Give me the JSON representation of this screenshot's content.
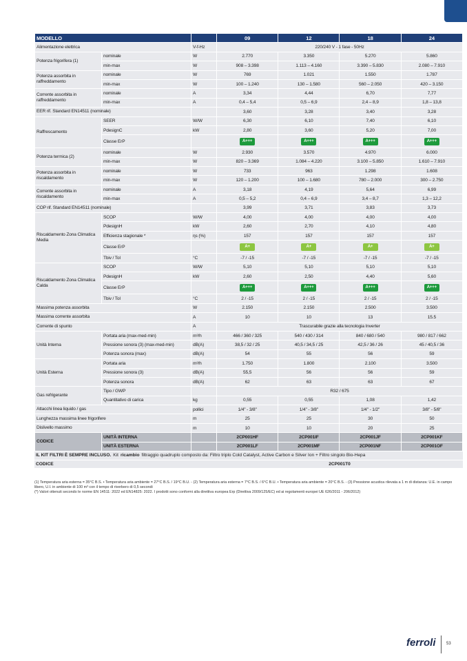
{
  "table": {
    "header": {
      "title": "MODELLO",
      "models": [
        "09",
        "12",
        "18",
        "24"
      ]
    },
    "sections": [
      {
        "label": "Alimentazione elettrica",
        "rows": [
          {
            "unit": "V-f-Hz",
            "cells": [
              "220/240 V - 1 fase - 50Hz"
            ]
          }
        ]
      },
      {
        "label": "Potenza frigorifera (1)",
        "rows": [
          {
            "sub": "nominale",
            "unit": "W",
            "cells": [
              "2.770",
              "3.350",
              "5.270",
              "5.860"
            ]
          },
          {
            "sub": "min-max",
            "unit": "W",
            "cells": [
              "908 – 3.398",
              "1.113 – 4.160",
              "3.390 – 5.830",
              "2.080 – 7.910"
            ]
          }
        ]
      },
      {
        "label": "Potenza assorbita in raffreddamento",
        "rows": [
          {
            "sub": "nominale",
            "unit": "W",
            "cells": [
              "769",
              "1.021",
              "1.550",
              "1.787"
            ]
          },
          {
            "sub": "min-max",
            "unit": "W",
            "cells": [
              "100 – 1.240",
              "130 – 1.580",
              "560 – 2.050",
              "420 – 3.150"
            ]
          }
        ]
      },
      {
        "label": "Corrente assorbita in raffreddamento",
        "rows": [
          {
            "sub": "nominale",
            "unit": "A",
            "cells": [
              "3,34",
              "4,44",
              "6,70",
              "7,77"
            ]
          },
          {
            "sub": "min-max",
            "unit": "A",
            "cells": [
              "0,4 – 5,4",
              "0,5 – 6,9",
              "2,4 – 8,9",
              "1,8 – 13,8"
            ]
          }
        ]
      },
      {
        "label": "EER rif. Standard EN14511 (nominale)",
        "rows": [
          {
            "cells": [
              "3,60",
              "3,28",
              "3,40",
              "3,28"
            ]
          }
        ]
      },
      {
        "label": "Raffrescamento",
        "rows": [
          {
            "sub": "SEER",
            "unit": "W/W",
            "cells": [
              "6,30",
              "6,10",
              "7,40",
              "6,10"
            ]
          },
          {
            "sub": "PdesignC",
            "unit": "kW",
            "cells": [
              "2,80",
              "3,60",
              "5,20",
              "7,00"
            ]
          },
          {
            "sub": "Classe ErP",
            "badge": "dark",
            "cells": [
              "A+++",
              "A+++",
              "A+++",
              "A+++"
            ]
          }
        ]
      },
      {
        "label": "Potenza termica (2)",
        "rows": [
          {
            "sub": "nominale",
            "unit": "W",
            "cells": [
              "2.930",
              "3.570",
              "4.970",
              "6.000"
            ]
          },
          {
            "sub": "min-max",
            "unit": "W",
            "cells": [
              "820 – 3.369",
              "1.084 – 4.220",
              "3.100 – 5.850",
              "1.610 – 7.910"
            ]
          }
        ]
      },
      {
        "label": "Potenza assorbita in riscaldamento",
        "rows": [
          {
            "sub": "nominale",
            "unit": "W",
            "cells": [
              "733",
              "963",
              "1.298",
              "1.608"
            ]
          },
          {
            "sub": "min-max",
            "unit": "W",
            "cells": [
              "120 – 1.200",
              "100 – 1.680",
              "780 – 2.000",
              "300 – 2.750"
            ]
          }
        ]
      },
      {
        "label": "Corrente assorbita in riscaldamento",
        "rows": [
          {
            "sub": "nominale",
            "unit": "A",
            "cells": [
              "3,18",
              "4,19",
              "5,64",
              "6,99"
            ]
          },
          {
            "sub": "min-max",
            "unit": "A",
            "cells": [
              "0,5 – 5,2",
              "0,4 – 6,9",
              "3,4 – 8,7",
              "1,3 – 12,2"
            ]
          }
        ]
      },
      {
        "label": "COP rif. Standard EN14511 (nominale)",
        "rows": [
          {
            "cells": [
              "3,99",
              "3,71",
              "3,83",
              "3,73"
            ]
          }
        ]
      },
      {
        "label": "Riscaldamento Zona Climatica Media",
        "rows": [
          {
            "sub": "SCOP",
            "unit": "W/W",
            "cells": [
              "4,00",
              "4,00",
              "4,00",
              "4,00"
            ]
          },
          {
            "sub": "PdesignH",
            "unit": "kW",
            "cells": [
              "2,60",
              "2,70",
              "4,10",
              "4,80"
            ]
          },
          {
            "sub": "Efficienza stagionale *",
            "unit": "ηs (%)",
            "cells": [
              "157",
              "157",
              "157",
              "157"
            ]
          },
          {
            "sub": "Classe ErP",
            "badge": "light",
            "cells": [
              "A+",
              "A+",
              "A+",
              "A+"
            ]
          },
          {
            "sub": "Tbiv / Tol",
            "unit": "°C",
            "cells": [
              "-7 / -15",
              "-7 / -15",
              "-7 / -15",
              "-7 / -15"
            ]
          }
        ]
      },
      {
        "label": "Riscaldamento Zona Climatica Calda",
        "rows": [
          {
            "sub": "SCOP",
            "unit": "W/W",
            "cells": [
              "5,10",
              "5,10",
              "5,10",
              "5,10"
            ]
          },
          {
            "sub": "PdesignH",
            "unit": "kW",
            "cells": [
              "2,60",
              "2,50",
              "4,40",
              "5,60"
            ]
          },
          {
            "sub": "Classe ErP",
            "badge": "dark",
            "cells": [
              "A+++",
              "A+++",
              "A+++",
              "A+++"
            ]
          },
          {
            "sub": "Tbiv / Tol",
            "unit": "°C",
            "cells": [
              "2 / -15",
              "2 / -15",
              "2 / -15",
              "2 / -15"
            ]
          }
        ]
      },
      {
        "label": "Massima potenza assorbita",
        "rows": [
          {
            "unit": "W",
            "cells": [
              "2.150",
              "2.150",
              "2.500",
              "3.500"
            ]
          }
        ]
      },
      {
        "label": "Massima corrente assorbita",
        "rows": [
          {
            "unit": "A",
            "cells": [
              "10",
              "10",
              "13",
              "15.5"
            ]
          }
        ]
      },
      {
        "label": "Corrente di spunto",
        "rows": [
          {
            "unit": "A",
            "cells": [
              "Trascurabile grazie alla tecnologia Inverter"
            ]
          }
        ]
      },
      {
        "label": "Unità Interna",
        "rows": [
          {
            "sub": "Portata aria (max-med-min)",
            "unit": "m³/h",
            "cells": [
              "466 / 360 / 325",
              "540 / 430 / 314",
              "840 / 680 / 540",
              "980 / 817 / 662"
            ]
          },
          {
            "sub": "Pressione sonora (3) (max-med-min)",
            "unit": "dB(A)",
            "cells": [
              "38,5 / 32 / 25",
              "40,5 / 34,5 / 25",
              "42,5 / 36 / 26",
              "45 / 40,5 / 36"
            ]
          },
          {
            "sub": "Potenza sonora (max)",
            "unit": "dB(A)",
            "cells": [
              "54",
              "55",
              "56",
              "59"
            ]
          }
        ]
      },
      {
        "label": "Unità Esterna",
        "rows": [
          {
            "sub": "Portata aria",
            "unit": "m³/h",
            "cells": [
              "1.750",
              "1.800",
              "2.100",
              "3.500"
            ]
          },
          {
            "sub": "Pressione sonora (3)",
            "unit": "dB(A)",
            "cells": [
              "55,5",
              "56",
              "56",
              "59"
            ]
          },
          {
            "sub": "Potenza sonora",
            "unit": "dB(A)",
            "cells": [
              "62",
              "63",
              "63",
              "67"
            ]
          }
        ]
      },
      {
        "label": "Gas refrigerante",
        "rows": [
          {
            "sub": "Tipo / GWP",
            "cells": [
              "R32 / 675"
            ]
          },
          {
            "sub": "Quantitativo di carica",
            "unit": "kg",
            "cells": [
              "0,55",
              "0,55",
              "1,08",
              "1,42"
            ]
          }
        ]
      },
      {
        "label": "Attacchi linea liquido / gas",
        "rows": [
          {
            "unit": "pollici",
            "cells": [
              "1/4\" - 3/8\"",
              "1/4\" - 3/8\"",
              "1/4\" - 1/2\"",
              "3/8\" - 5/8\""
            ]
          }
        ]
      },
      {
        "label": "Lunghezza massima linee frigorifere",
        "rows": [
          {
            "unit": "m",
            "cells": [
              "25",
              "25",
              "30",
              "50"
            ]
          }
        ]
      },
      {
        "label": "Dislivello massimo",
        "rows": [
          {
            "unit": "m",
            "cells": [
              "10",
              "10",
              "20",
              "25"
            ]
          }
        ]
      },
      {
        "label": "CODICE",
        "code": true,
        "rows": [
          {
            "sub": "UNITÀ INTERNA",
            "cells": [
              "2CP001HF",
              "2CP001IF",
              "2CP001JF",
              "2CP001KF"
            ]
          },
          {
            "sub": "UNITÀ ESTERNA",
            "cells": [
              "2CP001LF",
              "2CP001MF",
              "2CP001NF",
              "2CP001OF"
            ]
          }
        ]
      }
    ]
  },
  "kit": {
    "bold1": "IL KIT FILTRI È SEMPRE INCLUSO.",
    "text1": "Kit",
    "bold2": "ricambio",
    "text2": "filtraggio quadruplo composto da: Filtro triplo Cold Catalyst, Active Carbon e Silver Ion + Filtro singolo Bio-Hepa",
    "code_label": "CODICE",
    "code": "2CP001T0"
  },
  "footnotes": [
    "(1) Temperatura aria esterna = 35°C B.S. • Temperatura aria ambiente = 27°C B.S. / 19°C B.U. - (2) Temperatura aria esterna = 7°C B.S. / 6°C B.U. • Temperatura aria ambiente = 20°C B.S. - (3) Pressione acustica rilevata a 1 m di distanza: U.E. in campo libero, U.I. in ambiente di 100 m³ con il tempo di riverbero di 0,5 secondi",
    "(*) Valori ottenuti secondo le norme EN 14511: 2022 ed EN14825: 2022. I prodotti sono conformi alla direttiva europea Erp (Direttiva 2009/125/EC) ed ai regolamenti europei UE 626/2011 - 206/2012)"
  ],
  "footer": {
    "brand": "ferroli",
    "page": "53"
  }
}
